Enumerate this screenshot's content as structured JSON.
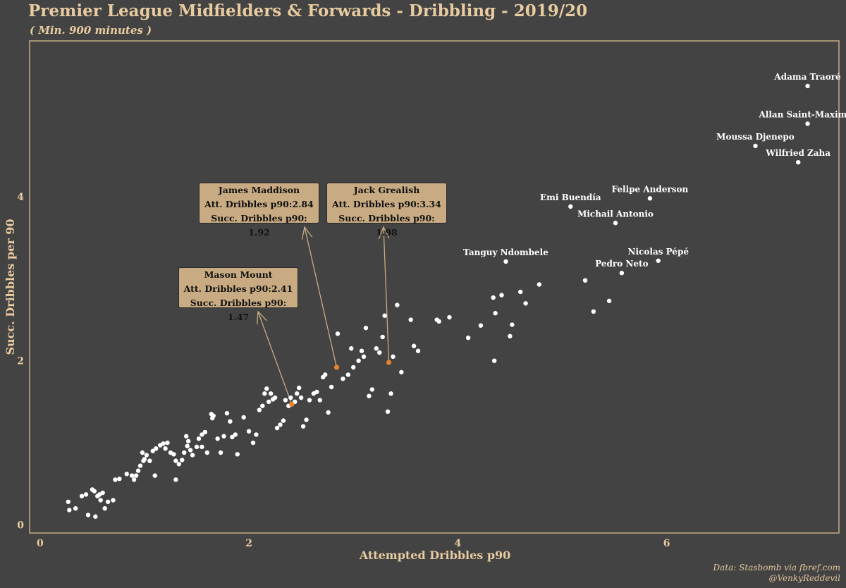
{
  "title": "Premier League Midfielders & Forwards - Dribbling - 2019/20",
  "subtitle": "( Min. 900 minutes )",
  "caption": [
    "Data: Stasbomb via fbref.com",
    "@VenkyReddevil"
  ],
  "colors": {
    "background": "#434343",
    "axis_text": "#e8cba0",
    "frame": "#c8ab82",
    "points": "#ffffff",
    "highlight": "#e8842a",
    "callout_fill": "#c8ab82"
  },
  "chart_data": {
    "type": "scatter",
    "xlabel": "Attempted Dribbles p90",
    "ylabel": "Succ. Dribbles per 90",
    "xlim": [
      -0.1,
      7.65
    ],
    "ylim": [
      -0.1,
      5.9
    ],
    "xticks": [
      0,
      2,
      4,
      6
    ],
    "yticks": [
      0,
      2,
      4
    ],
    "grid": false,
    "labeled_points": [
      {
        "name": "Adama Traoré",
        "x": 7.35,
        "y": 5.35
      },
      {
        "name": "Allan Saint-Maximin",
        "x": 7.35,
        "y": 4.89
      },
      {
        "name": "Moussa Djenepo",
        "x": 6.85,
        "y": 4.62
      },
      {
        "name": "Wilfried Zaha",
        "x": 7.26,
        "y": 4.42
      },
      {
        "name": "Felipe Anderson",
        "x": 5.84,
        "y": 3.98
      },
      {
        "name": "Emi Buendía",
        "x": 5.08,
        "y": 3.88
      },
      {
        "name": "Michail Antonio",
        "x": 5.51,
        "y": 3.68
      },
      {
        "name": "Nicolas Pépé",
        "x": 5.92,
        "y": 3.22
      },
      {
        "name": "Tanguy Ndombele",
        "x": 4.46,
        "y": 3.21
      },
      {
        "name": "Pedro Neto",
        "x": 5.57,
        "y": 3.07
      }
    ],
    "highlighted": [
      {
        "name": "James Maddison",
        "x": 2.84,
        "y": 1.92,
        "lines": [
          "James Maddison",
          "Att. Dribbles p90:2.84",
          "Succ. Dribbles p90: 1.92"
        ]
      },
      {
        "name": "Jack Grealish",
        "x": 3.34,
        "y": 1.98,
        "lines": [
          "Jack Grealish",
          "Att. Dribbles p90:3.34",
          "Succ. Dribbles p90: 1.98"
        ]
      },
      {
        "name": "Mason Mount",
        "x": 2.41,
        "y": 1.47,
        "lines": [
          "Mason Mount",
          "Att. Dribbles p90:2.41",
          "Succ. Dribbles p90: 1.47"
        ]
      }
    ],
    "points": [
      [
        0.27,
        0.28
      ],
      [
        0.28,
        0.18
      ],
      [
        0.34,
        0.2
      ],
      [
        0.4,
        0.35
      ],
      [
        0.5,
        0.43
      ],
      [
        0.52,
        0.41
      ],
      [
        0.53,
        0.1
      ],
      [
        0.55,
        0.35
      ],
      [
        0.57,
        0.37
      ],
      [
        0.6,
        0.39
      ],
      [
        0.58,
        0.3
      ],
      [
        0.62,
        0.2
      ],
      [
        0.65,
        0.28
      ],
      [
        0.72,
        0.55
      ],
      [
        0.76,
        0.56
      ],
      [
        0.83,
        0.62
      ],
      [
        0.88,
        0.6
      ],
      [
        0.9,
        0.55
      ],
      [
        0.92,
        0.6
      ],
      [
        0.94,
        0.66
      ],
      [
        0.96,
        0.72
      ],
      [
        0.99,
        0.78
      ],
      [
        1.0,
        0.8
      ],
      [
        1.02,
        0.85
      ],
      [
        1.05,
        0.78
      ],
      [
        1.08,
        0.9
      ],
      [
        1.11,
        0.93
      ],
      [
        1.15,
        0.97
      ],
      [
        1.18,
        0.99
      ],
      [
        1.2,
        0.93
      ],
      [
        1.22,
        1.0
      ],
      [
        1.25,
        0.88
      ],
      [
        1.28,
        0.86
      ],
      [
        1.3,
        0.78
      ],
      [
        1.33,
        0.74
      ],
      [
        1.36,
        0.79
      ],
      [
        1.38,
        0.88
      ],
      [
        1.41,
        0.96
      ],
      [
        1.42,
        1.02
      ],
      [
        1.44,
        0.91
      ],
      [
        1.46,
        0.85
      ],
      [
        1.5,
        0.95
      ],
      [
        1.52,
        1.05
      ],
      [
        1.55,
        1.1
      ],
      [
        1.58,
        1.13
      ],
      [
        1.6,
        0.88
      ],
      [
        1.64,
        1.35
      ],
      [
        1.66,
        1.33
      ],
      [
        1.7,
        1.05
      ],
      [
        1.73,
        0.88
      ],
      [
        1.76,
        1.08
      ],
      [
        1.79,
        1.36
      ],
      [
        1.82,
        1.26
      ],
      [
        1.84,
        1.07
      ],
      [
        1.87,
        1.1
      ],
      [
        1.89,
        0.86
      ],
      [
        1.95,
        1.31
      ],
      [
        2.0,
        1.14
      ],
      [
        2.04,
        1.0
      ],
      [
        2.07,
        1.1
      ],
      [
        2.1,
        1.4
      ],
      [
        2.13,
        1.45
      ],
      [
        2.15,
        1.6
      ],
      [
        2.17,
        1.66
      ],
      [
        2.19,
        1.5
      ],
      [
        2.21,
        1.6
      ],
      [
        2.23,
        1.53
      ],
      [
        2.25,
        1.55
      ],
      [
        2.27,
        1.18
      ],
      [
        2.3,
        1.22
      ],
      [
        2.33,
        1.27
      ],
      [
        2.35,
        1.52
      ],
      [
        2.38,
        1.45
      ],
      [
        2.4,
        1.55
      ],
      [
        2.44,
        1.5
      ],
      [
        2.46,
        1.6
      ],
      [
        2.48,
        1.67
      ],
      [
        2.5,
        1.55
      ],
      [
        2.52,
        1.2
      ],
      [
        2.55,
        1.28
      ],
      [
        2.58,
        1.52
      ],
      [
        2.62,
        1.6
      ],
      [
        2.65,
        1.62
      ],
      [
        2.68,
        1.52
      ],
      [
        2.71,
        1.8
      ],
      [
        2.73,
        1.83
      ],
      [
        2.76,
        1.37
      ],
      [
        2.79,
        1.68
      ],
      [
        2.85,
        2.33
      ],
      [
        2.9,
        1.78
      ],
      [
        2.95,
        1.83
      ],
      [
        2.98,
        2.15
      ],
      [
        3.0,
        1.92
      ],
      [
        3.05,
        2.0
      ],
      [
        3.08,
        2.12
      ],
      [
        3.1,
        2.05
      ],
      [
        3.12,
        2.4
      ],
      [
        3.15,
        1.57
      ],
      [
        3.18,
        1.65
      ],
      [
        3.22,
        2.15
      ],
      [
        3.25,
        2.1
      ],
      [
        3.28,
        2.29
      ],
      [
        3.3,
        2.55
      ],
      [
        3.33,
        1.38
      ],
      [
        3.36,
        1.6
      ],
      [
        3.38,
        2.05
      ],
      [
        3.42,
        2.68
      ],
      [
        3.46,
        1.86
      ],
      [
        3.55,
        2.5
      ],
      [
        3.58,
        2.18
      ],
      [
        3.62,
        2.12
      ],
      [
        3.8,
        2.5
      ],
      [
        3.82,
        2.48
      ],
      [
        3.92,
        2.53
      ],
      [
        4.1,
        2.28
      ],
      [
        4.22,
        2.43
      ],
      [
        4.34,
        2.77
      ],
      [
        4.35,
        2.0
      ],
      [
        4.36,
        2.58
      ],
      [
        4.42,
        2.8
      ],
      [
        4.5,
        2.3
      ],
      [
        4.52,
        2.44
      ],
      [
        4.6,
        2.84
      ],
      [
        4.65,
        2.7
      ],
      [
        4.78,
        2.93
      ],
      [
        5.22,
        2.98
      ],
      [
        5.3,
        2.6
      ],
      [
        5.45,
        2.73
      ],
      [
        1.65,
        1.3
      ],
      [
        1.55,
        0.95
      ],
      [
        1.4,
        1.08
      ],
      [
        0.44,
        0.37
      ],
      [
        0.46,
        0.12
      ],
      [
        1.3,
        0.55
      ],
      [
        1.1,
        0.6
      ],
      [
        0.98,
        0.88
      ],
      [
        0.7,
        0.3
      ]
    ]
  }
}
